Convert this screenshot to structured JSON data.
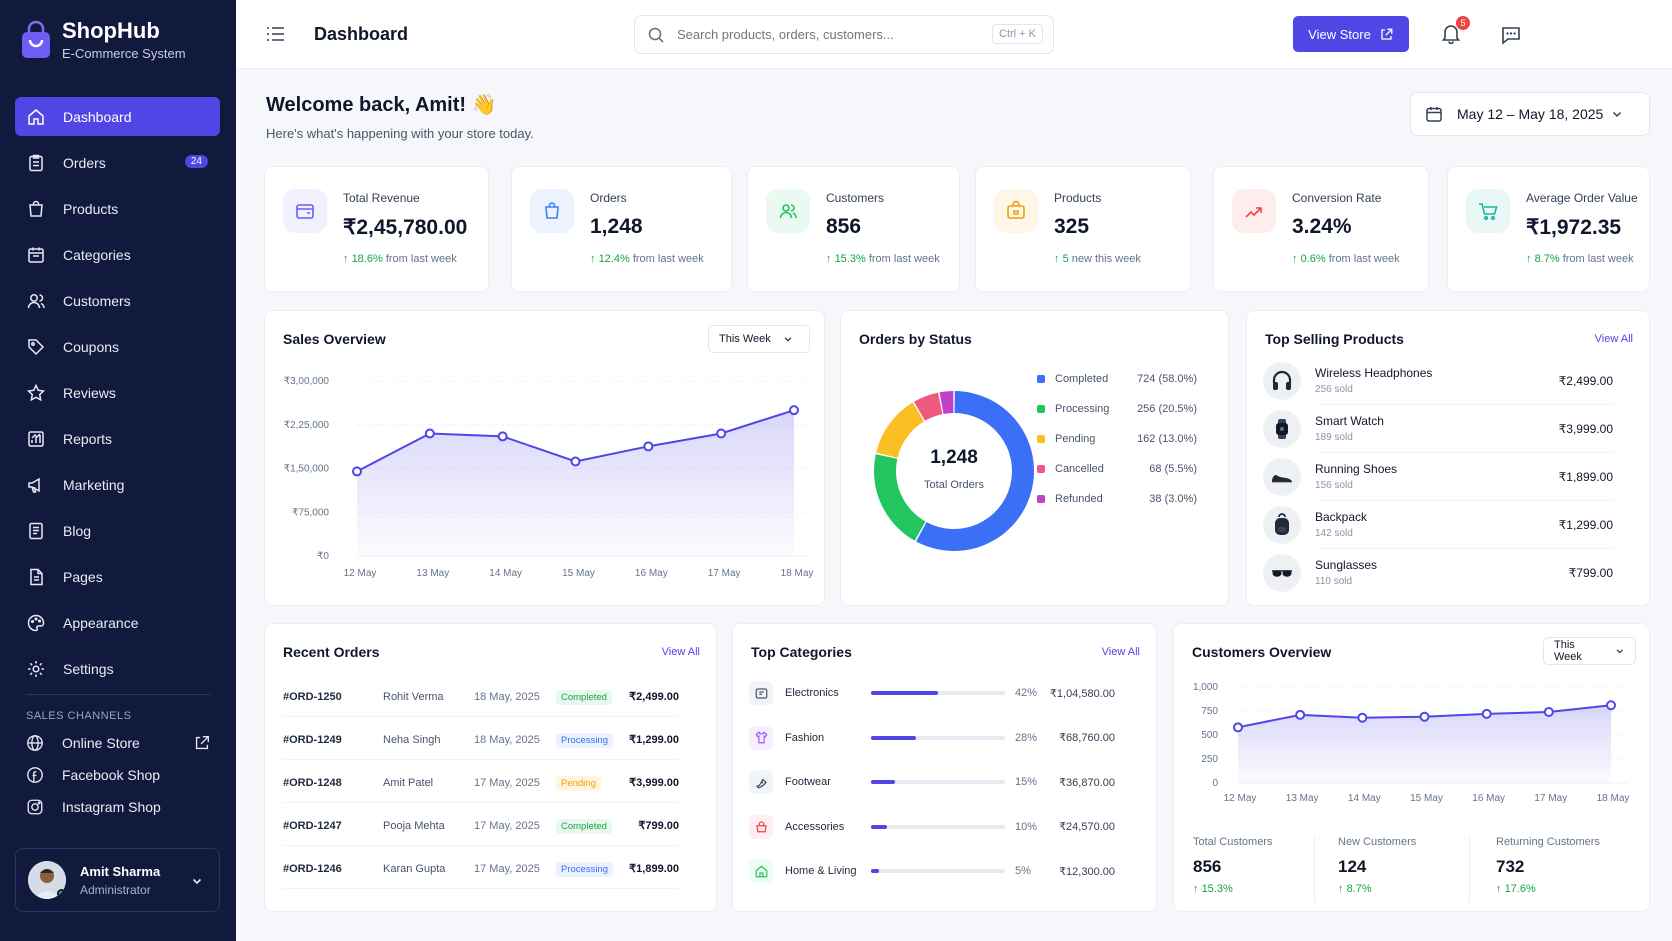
{
  "app": {
    "name": "ShopHub",
    "subtitle": "E-Commerce System"
  },
  "sidebar": {
    "items": [
      {
        "label": "Dashboard",
        "icon": "home-icon",
        "active": true
      },
      {
        "label": "Orders",
        "icon": "clipboard-icon",
        "badge": "24"
      },
      {
        "label": "Products",
        "icon": "bag-icon"
      },
      {
        "label": "Categories",
        "icon": "folder-icon"
      },
      {
        "label": "Customers",
        "icon": "user-icon"
      },
      {
        "label": "Coupons",
        "icon": "tag-icon"
      },
      {
        "label": "Reviews",
        "icon": "star-icon"
      },
      {
        "label": "Reports",
        "icon": "chart-icon"
      },
      {
        "label": "Marketing",
        "icon": "megaphone-icon"
      },
      {
        "label": "Blog",
        "icon": "document-icon"
      },
      {
        "label": "Pages",
        "icon": "page-icon"
      },
      {
        "label": "Appearance",
        "icon": "palette-icon"
      },
      {
        "label": "Settings",
        "icon": "gear-icon"
      }
    ],
    "channels_label": "SALES CHANNELS",
    "channels": [
      {
        "label": "Online Store",
        "icon": "globe-icon"
      },
      {
        "label": "Facebook Shop",
        "icon": "facebook-icon"
      },
      {
        "label": "Instagram Shop",
        "icon": "instagram-icon"
      }
    ],
    "user": {
      "name": "Amit Sharma",
      "role": "Administrator"
    }
  },
  "header": {
    "title": "Dashboard",
    "search_placeholder": "Search products, orders, customers...",
    "shortcut": "Ctrl + K",
    "view_store": "View Store",
    "notification_count": "5"
  },
  "welcome": {
    "title": "Welcome back, Amit! 👋",
    "subtitle": "Here's what's happening with your store today.",
    "date_range": "May 12 – May 18, 2025"
  },
  "stats": [
    {
      "label": "Total Revenue",
      "value": "₹2,45,780.00",
      "delta": "18.6%",
      "note": "from last week",
      "color": "#6d5df5"
    },
    {
      "label": "Orders",
      "value": "1,248",
      "delta": "12.4%",
      "note": "from last week",
      "color": "#3b82f6"
    },
    {
      "label": "Customers",
      "value": "856",
      "delta": "15.3%",
      "note": "from last week",
      "color": "#22c55e"
    },
    {
      "label": "Products",
      "value": "325",
      "delta": "5",
      "note": "new this week",
      "color": "#f59e0b"
    },
    {
      "label": "Conversion Rate",
      "value": "3.24%",
      "delta": "0.6%",
      "note": "from last week",
      "color": "#ef4444"
    },
    {
      "label": "Average Order Value",
      "value": "₹1,972.35",
      "delta": "8.7%",
      "note": "from last week",
      "color": "#14b8a6"
    }
  ],
  "sales_overview": {
    "title": "Sales Overview",
    "filter": "This Week"
  },
  "orders_by_status": {
    "title": "Orders by Status",
    "total": "1,248",
    "total_label": "Total Orders",
    "items": [
      {
        "label": "Completed",
        "value": "724 (58.0%)",
        "color": "#3b6ff5"
      },
      {
        "label": "Processing",
        "value": "256 (20.5%)",
        "color": "#22c55e"
      },
      {
        "label": "Pending",
        "value": "162 (13.0%)",
        "color": "#fbbf24"
      },
      {
        "label": "Cancelled",
        "value": "68 (5.5%)",
        "color": "#f05a7e"
      },
      {
        "label": "Refunded",
        "value": "38 (3.0%)",
        "color": "#c042c8"
      }
    ]
  },
  "top_products": {
    "title": "Top Selling Products",
    "view_all": "View All",
    "items": [
      {
        "name": "Wireless Headphones",
        "sold": "256 sold",
        "price": "₹2,499.00",
        "icon": "headphones-icon"
      },
      {
        "name": "Smart Watch",
        "sold": "189 sold",
        "price": "₹3,999.00",
        "icon": "watch-icon"
      },
      {
        "name": "Running Shoes",
        "sold": "156 sold",
        "price": "₹1,899.00",
        "icon": "shoe-icon"
      },
      {
        "name": "Backpack",
        "sold": "142 sold",
        "price": "₹1,299.00",
        "icon": "backpack-icon"
      },
      {
        "name": "Sunglasses",
        "sold": "110 sold",
        "price": "₹799.00",
        "icon": "sunglasses-icon"
      }
    ]
  },
  "recent_orders": {
    "title": "Recent Orders",
    "view_all": "View All",
    "rows": [
      {
        "id": "#ORD-1250",
        "customer": "Rohit Verma",
        "date": "18 May, 2025",
        "status": "Completed",
        "amount": "₹2,499.00"
      },
      {
        "id": "#ORD-1249",
        "customer": "Neha Singh",
        "date": "18 May, 2025",
        "status": "Processing",
        "amount": "₹1,299.00"
      },
      {
        "id": "#ORD-1248",
        "customer": "Amit Patel",
        "date": "17 May, 2025",
        "status": "Pending",
        "amount": "₹3,999.00"
      },
      {
        "id": "#ORD-1247",
        "customer": "Pooja Mehta",
        "date": "17 May, 2025",
        "status": "Completed",
        "amount": "₹799.00"
      },
      {
        "id": "#ORD-1246",
        "customer": "Karan Gupta",
        "date": "17 May, 2025",
        "status": "Processing",
        "amount": "₹1,899.00"
      }
    ]
  },
  "top_categories": {
    "title": "Top Categories",
    "view_all": "View All",
    "items": [
      {
        "name": "Electronics",
        "pct": "42%",
        "share": 0.42,
        "revenue": "₹1,04,580.00",
        "color": "#475569",
        "bg": "#f1f5f9",
        "icon": "device-icon"
      },
      {
        "name": "Fashion",
        "pct": "28%",
        "share": 0.28,
        "revenue": "₹68,760.00",
        "color": "#a855f7",
        "bg": "#f5efff",
        "icon": "shirt-icon"
      },
      {
        "name": "Footwear",
        "pct": "15%",
        "share": 0.15,
        "revenue": "₹36,870.00",
        "color": "#334155",
        "bg": "#f1f5f9",
        "icon": "footwear-icon"
      },
      {
        "name": "Accessories",
        "pct": "10%",
        "share": 0.1,
        "revenue": "₹24,570.00",
        "color": "#ef4444",
        "bg": "#fef0f0",
        "icon": "accessory-icon"
      },
      {
        "name": "Home & Living",
        "pct": "5%",
        "share": 0.05,
        "revenue": "₹12,300.00",
        "color": "#22c55e",
        "bg": "#ecfdf3",
        "icon": "house-icon"
      }
    ]
  },
  "customers_overview": {
    "title": "Customers Overview",
    "filter": "This Week",
    "stats": [
      {
        "label": "Total Customers",
        "value": "856",
        "delta": "15.3%"
      },
      {
        "label": "New Customers",
        "value": "124",
        "delta": "8.7%"
      },
      {
        "label": "Returning Customers",
        "value": "732",
        "delta": "17.6%"
      }
    ]
  },
  "chart_data": [
    {
      "type": "area",
      "title": "Sales Overview",
      "categories": [
        "12 May",
        "13 May",
        "14 May",
        "15 May",
        "16 May",
        "17 May",
        "18 May"
      ],
      "values": [
        145000,
        210000,
        205000,
        162000,
        188000,
        210000,
        250000
      ],
      "ylim": [
        0,
        300000
      ],
      "yticks": [
        "₹0",
        "₹75,000",
        "₹1,50,000",
        "₹2,25,000",
        "₹3,00,000"
      ],
      "color": "#5046e5"
    },
    {
      "type": "pie",
      "title": "Orders by Status",
      "categories": [
        "Completed",
        "Processing",
        "Pending",
        "Cancelled",
        "Refunded"
      ],
      "values": [
        724,
        256,
        162,
        68,
        38
      ]
    },
    {
      "type": "area",
      "title": "Customers Overview",
      "categories": [
        "12 May",
        "13 May",
        "14 May",
        "15 May",
        "16 May",
        "17 May",
        "18 May"
      ],
      "values": [
        580,
        710,
        680,
        690,
        720,
        740,
        810
      ],
      "ylim": [
        0,
        1000
      ],
      "yticks": [
        "0",
        "250",
        "500",
        "750",
        "1,000"
      ],
      "color": "#5046e5"
    }
  ]
}
